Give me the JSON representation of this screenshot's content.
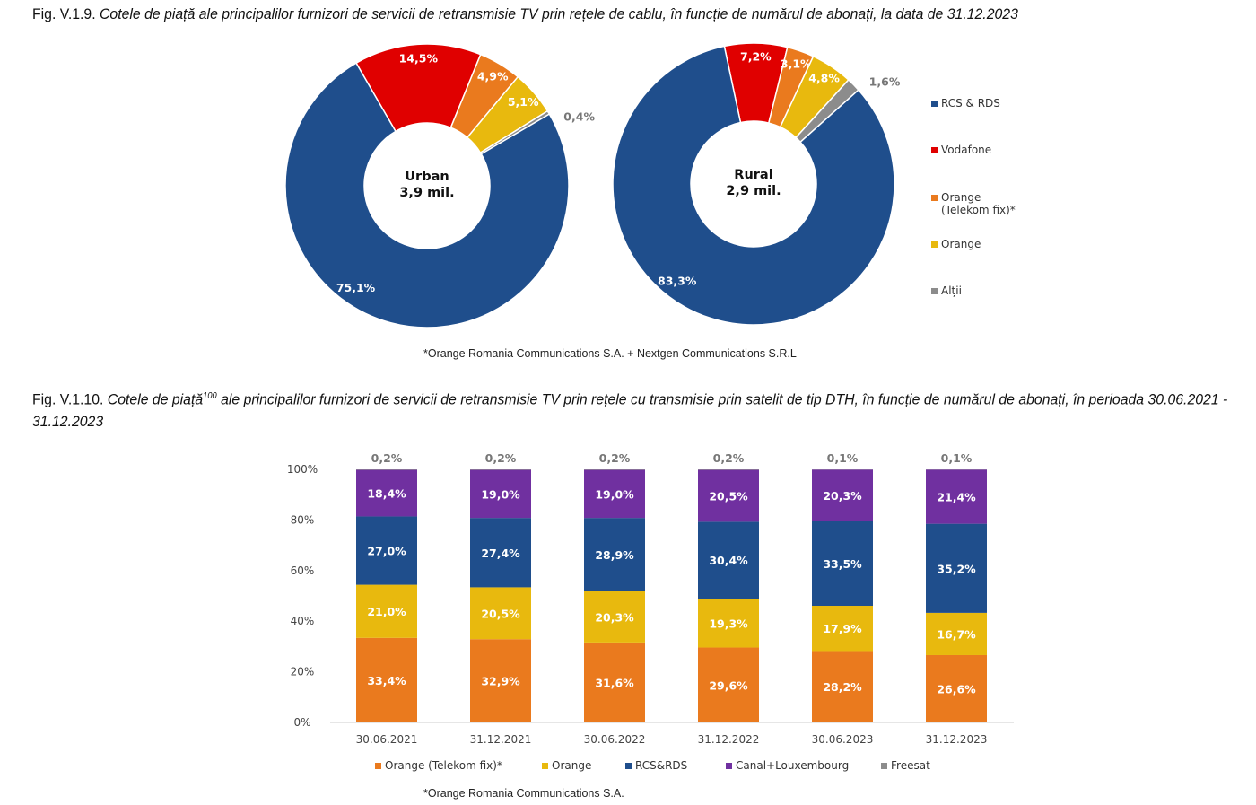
{
  "fig1": {
    "number": "Fig. V.1.9.",
    "title": "Cotele de piață ale principalilor furnizori de servicii de retransmisie TV prin rețele de cablu, în funcție de numărul de abonați, la data de 31.12.2023",
    "footnote": "*Orange Romania Communications S.A. + Nextgen Communications S.R.L"
  },
  "fig2": {
    "number": "Fig. V.1.10.",
    "title_a": "Cotele de piață",
    "sup": "100",
    "title_b": " ale principalilor furnizori de servicii de retransmisie TV prin rețele cu transmisie prin satelit de tip DTH, în funcție de numărul de abonați, în perioada 30.06.2021 - 31.12.2023",
    "footnote": "*Orange Romania Communications S.A."
  },
  "chart_data": [
    {
      "type": "pie",
      "subtype": "donut",
      "title": "Urban",
      "center_label": [
        "Urban",
        "3,9 mil."
      ],
      "slices": [
        {
          "name": "Vodafone",
          "value": 14.5,
          "label": "14,5%"
        },
        {
          "name": "Orange (Telekom fix)*",
          "value": 4.9,
          "label": "4,9%"
        },
        {
          "name": "Orange",
          "value": 5.1,
          "label": "5,1%"
        },
        {
          "name": "Alții",
          "value": 0.4,
          "label": "0,4%"
        },
        {
          "name": "RCS & RDS",
          "value": 75.1,
          "label": "75,1%"
        }
      ]
    },
    {
      "type": "pie",
      "subtype": "donut",
      "title": "Rural",
      "center_label": [
        "Rural",
        "2,9 mil."
      ],
      "slices": [
        {
          "name": "Vodafone",
          "value": 7.2,
          "label": "7,2%"
        },
        {
          "name": "Orange (Telekom fix)*",
          "value": 3.1,
          "label": "3,1%"
        },
        {
          "name": "Orange",
          "value": 4.8,
          "label": "4,8%"
        },
        {
          "name": "Alții",
          "value": 1.6,
          "label": "1,6%"
        },
        {
          "name": "RCS & RDS",
          "value": 83.3,
          "label": "83,3%"
        }
      ],
      "legend": [
        "RCS & RDS",
        "Vodafone",
        "Orange (Telekom fix)*",
        "Orange",
        "Alții"
      ],
      "legend_placement": "right"
    },
    {
      "type": "bar",
      "stacked": true,
      "categories": [
        "30.06.2021",
        "31.12.2021",
        "30.06.2022",
        "31.12.2022",
        "30.06.2023",
        "31.12.2023"
      ],
      "yticks": [
        "0%",
        "20%",
        "40%",
        "60%",
        "80%",
        "100%"
      ],
      "ylim": [
        0,
        100
      ],
      "legend_placement": "bottom",
      "series": [
        {
          "name": "Orange (Telekom fix)*",
          "values": [
            33.4,
            32.9,
            31.6,
            29.6,
            28.2,
            26.6
          ],
          "labels": [
            "33,4%",
            "32,9%",
            "31,6%",
            "29,6%",
            "28,2%",
            "26,6%"
          ]
        },
        {
          "name": "Orange",
          "values": [
            21.0,
            20.5,
            20.3,
            19.3,
            17.9,
            16.7
          ],
          "labels": [
            "21,0%",
            "20,5%",
            "20,3%",
            "19,3%",
            "17,9%",
            "16,7%"
          ]
        },
        {
          "name": "RCS&RDS",
          "values": [
            27.0,
            27.4,
            28.9,
            30.4,
            33.5,
            35.2
          ],
          "labels": [
            "27,0%",
            "27,4%",
            "28,9%",
            "30,4%",
            "33,5%",
            "35,2%"
          ]
        },
        {
          "name": "Canal+Louxembourg",
          "values": [
            18.4,
            19.0,
            19.0,
            20.5,
            20.3,
            21.4
          ],
          "labels": [
            "18,4%",
            "19,0%",
            "19,0%",
            "20,5%",
            "20,3%",
            "21,4%"
          ]
        },
        {
          "name": "Freesat",
          "values": [
            0.2,
            0.2,
            0.2,
            0.2,
            0.1,
            0.1
          ],
          "labels": [
            "0,2%",
            "0,2%",
            "0,2%",
            "0,2%",
            "0,1%",
            "0,1%"
          ]
        }
      ]
    }
  ],
  "colors": {
    "Vodafone": "#e00000",
    "Orange (Telekom fix)*": "#ea7a1e",
    "Orange": "#e8b90e",
    "Alții": "#8c8c8c",
    "RCS & RDS": "#1f4e8c",
    "RCS&RDS": "#1f4e8c",
    "Canal+Louxembourg": "#7030a0",
    "Freesat": "#8c8c8c"
  }
}
